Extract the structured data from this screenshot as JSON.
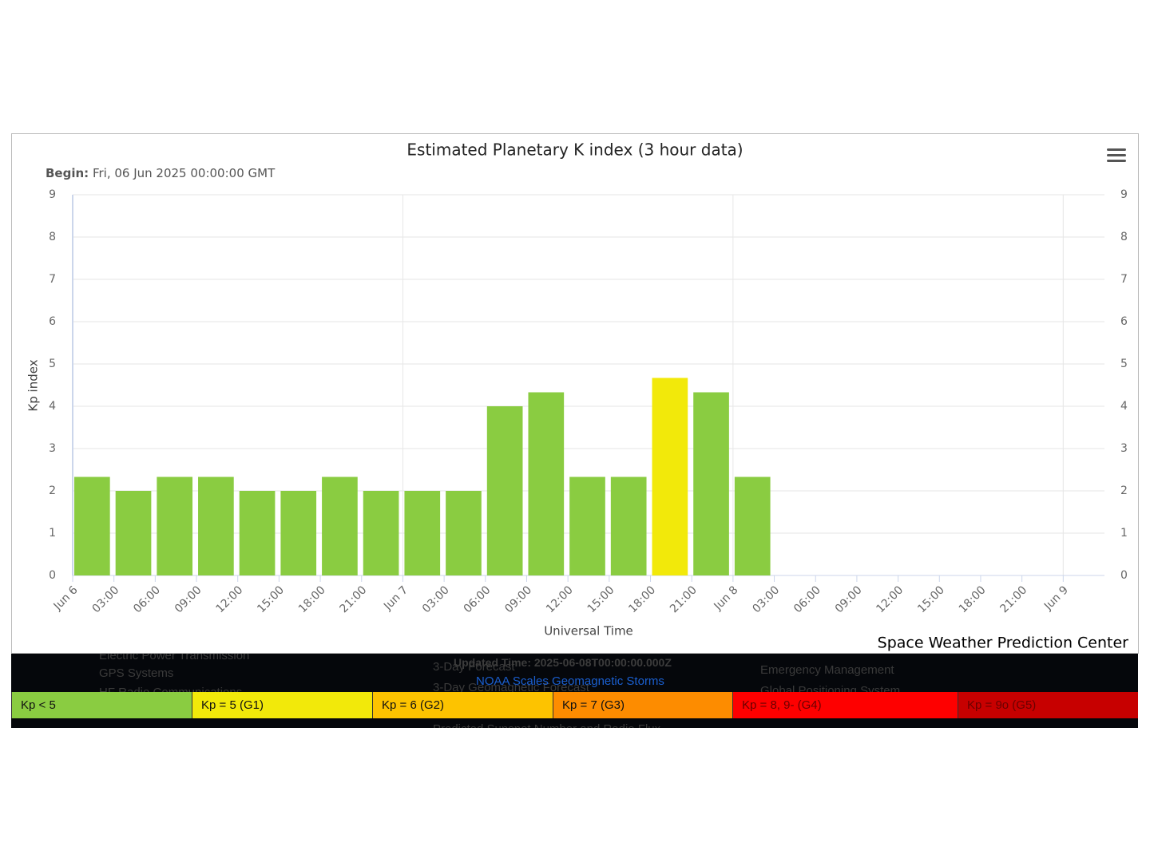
{
  "chart_data": {
    "type": "bar",
    "title": "Estimated Planetary K index (3 hour data)",
    "subtitle_label": "Begin:",
    "subtitle": "Fri, 06 Jun 2025 00:00:00 GMT",
    "y_label": "Kp index",
    "x_label": "Universal Time",
    "credit": "Space Weather Prediction Center",
    "x": [
      0,
      3,
      6,
      9,
      12,
      15,
      18,
      21,
      24,
      27,
      30,
      33,
      36,
      39,
      42,
      45,
      48
    ],
    "values": [
      2.33,
      2.0,
      2.33,
      2.33,
      2.0,
      2.0,
      2.33,
      2.0,
      2.0,
      2.0,
      4.0,
      4.33,
      2.33,
      2.33,
      4.67,
      4.33,
      2.33
    ],
    "colors": [
      "#8acc41",
      "#8acc41",
      "#8acc41",
      "#8acc41",
      "#8acc41",
      "#8acc41",
      "#8acc41",
      "#8acc41",
      "#8acc41",
      "#8acc41",
      "#8acc41",
      "#8acc41",
      "#8acc41",
      "#8acc41",
      "#f2e90a",
      "#8acc41",
      "#8acc41"
    ],
    "xlim": [
      0,
      75
    ],
    "xticks": [
      {
        "value": 0,
        "label": "Jun 6"
      },
      {
        "value": 3,
        "label": "03:00"
      },
      {
        "value": 6,
        "label": "06:00"
      },
      {
        "value": 9,
        "label": "09:00"
      },
      {
        "value": 12,
        "label": "12:00"
      },
      {
        "value": 15,
        "label": "15:00"
      },
      {
        "value": 18,
        "label": "18:00"
      },
      {
        "value": 21,
        "label": "21:00"
      },
      {
        "value": 24,
        "label": "Jun 7"
      },
      {
        "value": 27,
        "label": "03:00"
      },
      {
        "value": 30,
        "label": "06:00"
      },
      {
        "value": 33,
        "label": "09:00"
      },
      {
        "value": 36,
        "label": "12:00"
      },
      {
        "value": 39,
        "label": "15:00"
      },
      {
        "value": 42,
        "label": "18:00"
      },
      {
        "value": 45,
        "label": "21:00"
      },
      {
        "value": 48,
        "label": "Jun 8"
      },
      {
        "value": 51,
        "label": "03:00"
      },
      {
        "value": 54,
        "label": "06:00"
      },
      {
        "value": 57,
        "label": "09:00"
      },
      {
        "value": 60,
        "label": "12:00"
      },
      {
        "value": 63,
        "label": "15:00"
      },
      {
        "value": 66,
        "label": "18:00"
      },
      {
        "value": 69,
        "label": "21:00"
      },
      {
        "value": 72,
        "label": "Jun 9"
      }
    ],
    "ylim": [
      0,
      9
    ],
    "yticks": [
      0,
      1,
      2,
      3,
      4,
      5,
      6,
      7,
      8,
      9
    ],
    "y2lim": [
      0,
      9
    ],
    "y2ticks": [
      0,
      1,
      2,
      3,
      4,
      5,
      6,
      7,
      8,
      9
    ],
    "grid": true
  },
  "footer": {
    "updated": "Updated Time: 2025-06-08T00:00:00.000Z",
    "link": "NOAA Scales Geomagnetic Storms",
    "background_texts": [
      "Electric Power Transmission",
      "GPS Systems",
      "HF Radio Communications",
      "3-Day Forecast",
      "3-Day Geomagnetic Forecast",
      "Predicted Sunspot Number and Radio Flux",
      "Emergency Management",
      "Global Positioning System"
    ],
    "scale": [
      {
        "label": "Kp < 5",
        "color": "#8acc41"
      },
      {
        "label": "Kp = 5 (G1)",
        "color": "#f2e90a"
      },
      {
        "label": "Kp = 6 (G2)",
        "color": "#fdc300"
      },
      {
        "label": "Kp = 7 (G3)",
        "color": "#fd8c00"
      },
      {
        "label": "Kp = 8, 9- (G4)",
        "color": "#fe0000"
      },
      {
        "label": "Kp = 9o (G5)",
        "color": "#c70000"
      }
    ]
  }
}
